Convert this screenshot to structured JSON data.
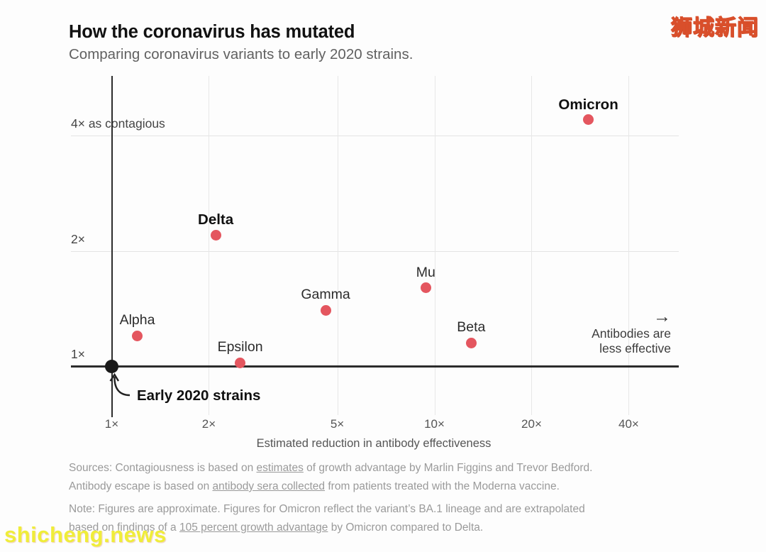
{
  "header": {
    "title": "How the coronavirus has mutated",
    "subtitle": "Comparing coronavirus variants to early 2020 strains."
  },
  "watermarks": {
    "top_right": "狮城新闻",
    "bottom_left": "shicheng.news"
  },
  "colors": {
    "variant_dot": "#e4565f",
    "origin_dot": "#1a1a1a",
    "axis": "#2c2c2c",
    "gridline": "#e5e5e5",
    "watermark_yellow": "#ffee3e",
    "watermark_outline": "#d94f2b"
  },
  "chart_data": {
    "type": "scatter",
    "title": "How the coronavirus has mutated",
    "subtitle": "Comparing coronavirus variants to early 2020 strains.",
    "x_axis": {
      "label": "Estimated reduction in antibody effectiveness",
      "scale": "log10",
      "ticks": [
        1,
        2,
        5,
        10,
        20,
        40
      ],
      "tick_labels": [
        "1×",
        "2×",
        "5×",
        "10×",
        "20×",
        "40×"
      ],
      "range": [
        1,
        57
      ]
    },
    "y_axis": {
      "label": "as contagious",
      "scale": "log2",
      "ticks": [
        1,
        2,
        4
      ],
      "tick_labels": [
        "1×",
        "2×",
        "4× as contagious"
      ],
      "range": [
        0.88,
        5.7
      ]
    },
    "grid": true,
    "points": [
      {
        "label": "Omicron",
        "x": 30,
        "y": 4.4,
        "bold": true
      },
      {
        "label": "Delta",
        "x": 2.1,
        "y": 2.2,
        "bold": true
      },
      {
        "label": "Mu",
        "x": 9.4,
        "y": 1.6,
        "bold": false
      },
      {
        "label": "Gamma",
        "x": 4.6,
        "y": 1.4,
        "bold": false
      },
      {
        "label": "Beta",
        "x": 13,
        "y": 1.15,
        "bold": false
      },
      {
        "label": "Alpha",
        "x": 1.2,
        "y": 1.2,
        "bold": false
      },
      {
        "label": "Epsilon",
        "x": 2.5,
        "y": 1.02,
        "bold": false
      },
      {
        "label": "Early 2020 strains",
        "x": 1,
        "y": 1,
        "bold": true,
        "is_origin": true
      }
    ],
    "annotations": {
      "origin_label": "Early 2020 strains",
      "arrow_glyph": "→",
      "right_label_line1": "Antibodies are",
      "right_label_line2": "less effective"
    }
  },
  "footer": {
    "paragraphs": [
      {
        "lines": [
          [
            {
              "t": "Sources: Contagiousness is based on "
            },
            {
              "t": "estimates",
              "link": true
            },
            {
              "t": " of growth advantage by Marlin Figgins and Trevor Bedford."
            }
          ],
          [
            {
              "t": "Antibody escape is based on "
            },
            {
              "t": "antibody sera collected",
              "link": true
            },
            {
              "t": " from patients treated with the Moderna vaccine."
            }
          ]
        ]
      },
      {
        "lines": [
          [
            {
              "t": "Note: Figures are approximate. Figures for Omicron reflect the variant’s BA.1 lineage and are extrapolated"
            }
          ],
          [
            {
              "t": "based on findings of a "
            },
            {
              "t": "105 percent growth advantage",
              "link": true
            },
            {
              "t": " by Omicron compared to Delta."
            }
          ]
        ]
      }
    ]
  }
}
